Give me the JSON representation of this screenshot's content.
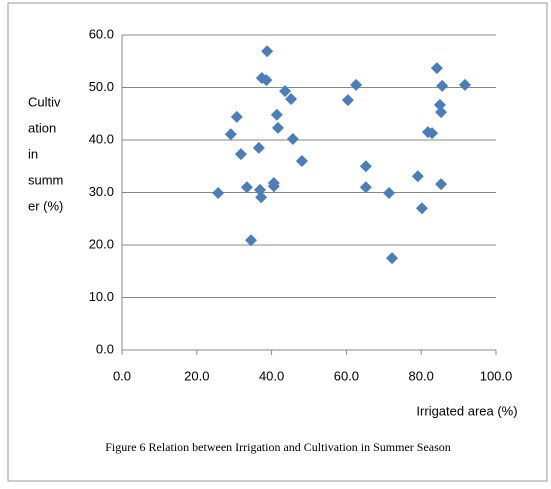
{
  "chart_data": {
    "type": "scatter",
    "y_label_lines": [
      "Cultiv",
      "ation",
      "in",
      "summ",
      "er (%)"
    ],
    "x_label": "Irrigated area (%)",
    "caption": "Figure 6  Relation between Irrigation and Cultivation in Summer Season",
    "color": "#4a7ebb",
    "x": [
      25.7,
      29.1,
      30.7,
      31.8,
      33.4,
      34.5,
      36.6,
      36.9,
      37.2,
      38.8,
      37.4,
      38.6,
      40.6,
      40.6,
      41.4,
      41.7,
      43.6,
      45.2,
      45.7,
      48.1,
      60.4,
      62.6,
      65.2,
      65.2,
      71.4,
      72.2,
      79.1,
      80.2,
      81.8,
      82.9,
      84.2,
      85.0,
      85.3,
      85.6,
      85.3,
      91.7
    ],
    "values": [
      29.9,
      41.1,
      44.4,
      37.3,
      31.0,
      20.9,
      38.5,
      30.5,
      29.1,
      56.9,
      51.8,
      51.4,
      31.2,
      31.8,
      44.8,
      42.3,
      49.3,
      47.8,
      40.2,
      36.0,
      47.6,
      50.5,
      35.0,
      31.0,
      29.9,
      17.5,
      33.1,
      27.0,
      41.5,
      41.3,
      53.7,
      46.7,
      45.3,
      50.3,
      31.6,
      50.5
    ],
    "xlim": [
      0,
      100
    ],
    "xticks": [
      {
        "value": 0,
        "label": "0.0"
      },
      {
        "value": 20,
        "label": "20.0"
      },
      {
        "value": 40,
        "label": "40.0"
      },
      {
        "value": 60,
        "label": "60.0"
      },
      {
        "value": 80,
        "label": "80.0"
      },
      {
        "value": 100,
        "label": "100.0"
      }
    ],
    "ylim": [
      0,
      60
    ],
    "yticks": [
      {
        "value": 0,
        "label": "0.0"
      },
      {
        "value": 10,
        "label": "10.0"
      },
      {
        "value": 20,
        "label": "20.0"
      },
      {
        "value": 30,
        "label": "30.0"
      },
      {
        "value": 40,
        "label": "40.0"
      },
      {
        "value": 50,
        "label": "50.0"
      },
      {
        "value": 60,
        "label": "60.0"
      }
    ],
    "grid": true
  }
}
